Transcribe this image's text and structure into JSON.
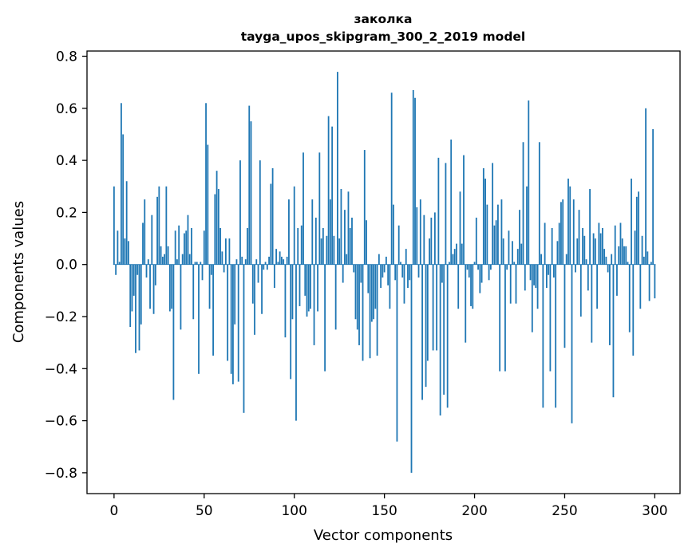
{
  "chart_data": {
    "type": "bar",
    "title": "заколка",
    "subtitle": "tayga_upos_skipgram_300_2_2019 model",
    "xlabel": "Vector components",
    "ylabel": "Components values",
    "xlim": [
      -15,
      314
    ],
    "ylim": [
      -0.88,
      0.82
    ],
    "xticks": [
      0,
      50,
      100,
      150,
      200,
      250,
      300
    ],
    "yticks": [
      -0.8,
      -0.6,
      -0.4,
      -0.2,
      0.0,
      0.2,
      0.4,
      0.6,
      0.8
    ],
    "xtick_labels": [
      "0",
      "50",
      "100",
      "150",
      "200",
      "250",
      "300"
    ],
    "ytick_labels": [
      "−0.8",
      "−0.6",
      "−0.4",
      "−0.2",
      "0.0",
      "0.2",
      "0.4",
      "0.6",
      "0.8"
    ],
    "grid": false,
    "bar_color": "#1f77b4",
    "values": [
      0.3,
      -0.04,
      0.13,
      0.01,
      0.62,
      0.5,
      0.1,
      0.32,
      0.09,
      -0.24,
      -0.18,
      -0.12,
      -0.34,
      -0.04,
      -0.33,
      -0.23,
      0.16,
      0.25,
      -0.05,
      0.02,
      -0.17,
      0.19,
      -0.19,
      -0.08,
      0.26,
      0.3,
      0.07,
      0.03,
      0.04,
      0.3,
      0.07,
      -0.18,
      -0.17,
      -0.52,
      0.13,
      0.02,
      0.15,
      -0.25,
      0.04,
      0.12,
      0.13,
      0.19,
      0.04,
      0.14,
      -0.21,
      0.01,
      0.01,
      -0.42,
      0.01,
      -0.06,
      0.13,
      0.62,
      0.46,
      -0.17,
      -0.04,
      -0.35,
      0.27,
      0.36,
      0.29,
      0.14,
      0.05,
      -0.03,
      0.1,
      -0.37,
      0.1,
      -0.42,
      -0.46,
      -0.23,
      0.02,
      -0.45,
      0.4,
      0.03,
      -0.57,
      0.02,
      0.14,
      0.61,
      0.55,
      -0.15,
      -0.27,
      0.02,
      -0.07,
      0.4,
      -0.19,
      -0.02,
      0.01,
      -0.02,
      0.03,
      0.31,
      0.37,
      -0.09,
      0.06,
      0.01,
      0.05,
      0.03,
      0.02,
      -0.28,
      0.03,
      0.25,
      -0.44,
      -0.21,
      0.3,
      -0.6,
      0.14,
      -0.16,
      0.15,
      0.43,
      -0.12,
      -0.2,
      -0.18,
      -0.17,
      0.25,
      -0.31,
      0.18,
      -0.18,
      0.43,
      0.1,
      0.14,
      -0.41,
      0.11,
      0.57,
      0.25,
      0.53,
      0.11,
      -0.25,
      0.74,
      0.1,
      0.29,
      -0.07,
      0.21,
      0.04,
      0.28,
      0.14,
      0.18,
      -0.03,
      -0.21,
      -0.25,
      -0.31,
      -0.07,
      -0.37,
      0.44,
      0.17,
      -0.11,
      -0.36,
      -0.22,
      -0.21,
      -0.17,
      -0.35,
      0.04,
      -0.09,
      -0.05,
      -0.03,
      0.03,
      -0.08,
      -0.17,
      0.66,
      0.23,
      -0.06,
      -0.68,
      0.15,
      0.01,
      -0.05,
      -0.15,
      0.06,
      -0.09,
      -0.06,
      -0.8,
      0.67,
      0.64,
      0.22,
      -0.05,
      0.25,
      -0.52,
      0.19,
      -0.47,
      -0.37,
      0.1,
      0.18,
      -0.33,
      0.2,
      -0.33,
      0.41,
      -0.58,
      -0.07,
      -0.5,
      0.39,
      -0.55,
      0.01,
      0.48,
      0.04,
      0.06,
      0.08,
      -0.17,
      0.28,
      0.08,
      0.42,
      -0.3,
      -0.02,
      -0.05,
      -0.16,
      -0.17,
      0.01,
      0.18,
      -0.02,
      -0.11,
      -0.07,
      0.37,
      0.33,
      0.23,
      -0.06,
      -0.02,
      0.39,
      0.15,
      0.17,
      0.23,
      -0.41,
      0.25,
      0.1,
      -0.41,
      -0.02,
      0.13,
      -0.15,
      0.09,
      0.01,
      -0.15,
      0.06,
      0.21,
      0.08,
      0.47,
      -0.1,
      0.3,
      0.63,
      -0.06,
      -0.26,
      -0.08,
      -0.09,
      -0.17,
      0.47,
      0.04,
      -0.55,
      0.16,
      -0.09,
      -0.04,
      -0.41,
      0.14,
      -0.05,
      -0.55,
      0.09,
      0.16,
      0.24,
      0.25,
      -0.32,
      0.04,
      0.33,
      0.3,
      -0.61,
      0.25,
      -0.03,
      0.1,
      0.21,
      -0.2,
      0.14,
      0.11,
      0.02,
      -0.1,
      0.29,
      -0.3,
      0.12,
      0.1,
      -0.17,
      0.16,
      0.12,
      0.14,
      0.06,
      0.03,
      -0.03,
      -0.31,
      0.04,
      -0.51,
      0.15,
      -0.12,
      0.07,
      0.16,
      0.1,
      0.07,
      0.07,
      0.01,
      -0.26,
      0.33,
      -0.35,
      0.13,
      0.26,
      0.28,
      -0.17,
      0.11,
      0.03,
      0.6,
      0.05,
      -0.14,
      0.01,
      0.52,
      -0.13
    ]
  }
}
